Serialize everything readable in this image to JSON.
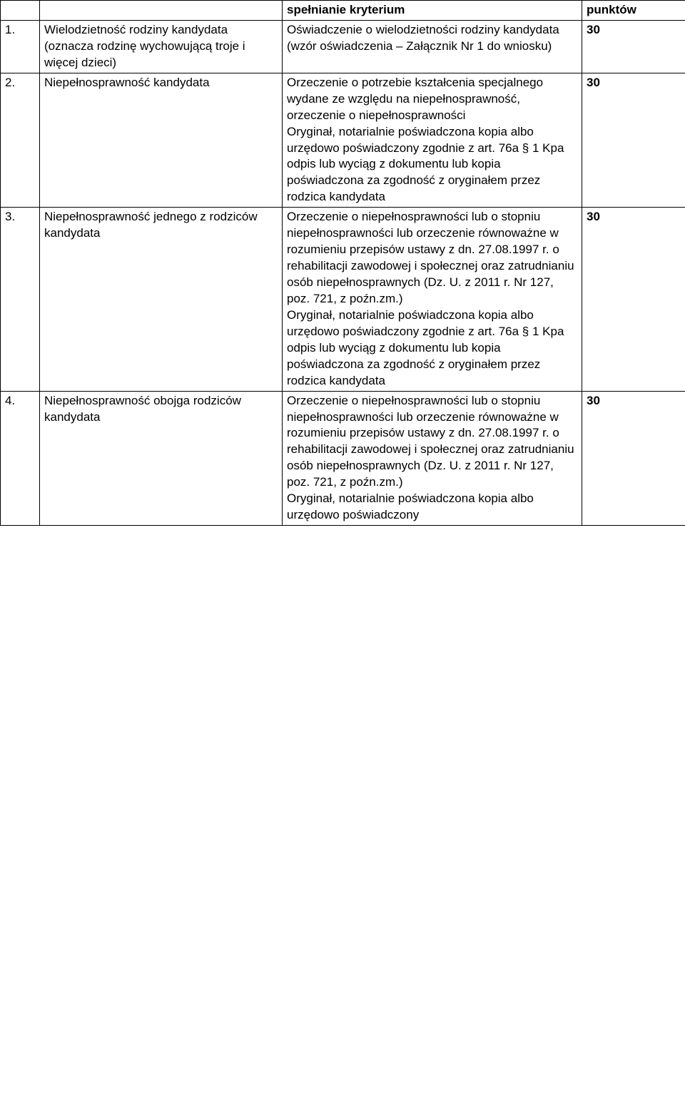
{
  "header": {
    "col3": "spełnianie kryterium",
    "col4": "punktów"
  },
  "rows": [
    {
      "num": "1.",
      "criterion": "Wielodzietność rodziny kandydata (oznacza rodzinę wychowującą troje i więcej dzieci)",
      "doc": "Oświadczenie o wielodzietności rodziny kandydata\n(wzór oświadczenia – Załącznik Nr 1 do wniosku)",
      "points": "30"
    },
    {
      "num": "2.",
      "criterion": "Niepełnosprawność kandydata",
      "doc": "Orzeczenie o potrzebie kształcenia specjalnego wydane ze względu na niepełnosprawność, orzeczenie o niepełnosprawności\nOryginał, notarialnie poświadczona kopia albo urzędowo poświadczony zgodnie z art. 76a § 1 Kpa odpis lub wyciąg z dokumentu lub kopia poświadczona za zgodność z oryginałem przez rodzica kandydata",
      "points": "30"
    },
    {
      "num": "3.",
      "criterion": "Niepełnosprawność jednego z rodziców kandydata",
      "doc": "Orzeczenie o niepełnosprawności lub o stopniu niepełnosprawności lub orzeczenie równoważne w rozumieniu przepisów ustawy z dn. 27.08.1997 r. o rehabilitacji zawodowej i społecznej oraz zatrudnianiu osób niepełnosprawnych (Dz. U. z 2011 r. Nr 127, poz. 721, z poźn.zm.)\nOryginał, notarialnie poświadczona kopia albo urzędowo poświadczony zgodnie z art. 76a § 1 Kpa odpis lub wyciąg z dokumentu lub kopia poświadczona za zgodność z oryginałem przez rodzica kandydata",
      "points": "30"
    },
    {
      "num": "4.",
      "criterion": "Niepełnosprawność obojga rodziców kandydata",
      "doc": "Orzeczenie o niepełnosprawności lub o stopniu niepełnosprawności lub orzeczenie równoważne w rozumieniu przepisów ustawy z dn. 27.08.1997 r. o rehabilitacji zawodowej i społecznej oraz zatrudnianiu osób niepełnosprawnych (Dz. U. z 2011 r. Nr 127, poz. 721, z poźn.zm.)\nOryginał, notarialnie poświadczona kopia albo urzędowo poświadczony",
      "points": "30"
    }
  ]
}
